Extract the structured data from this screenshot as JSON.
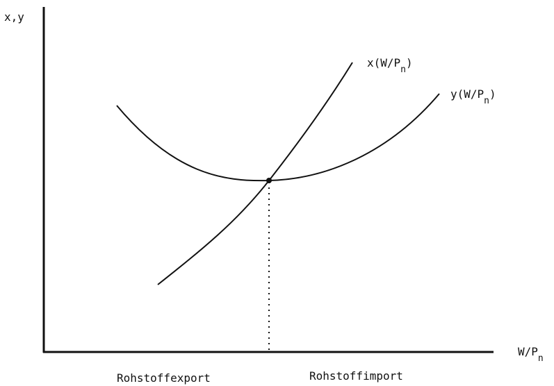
{
  "axes": {
    "y_label": "x,y",
    "x_label": {
      "main": "W/P",
      "sub": "n"
    }
  },
  "curves": [
    {
      "label": {
        "main": "x(W/P",
        "sub": "n",
        "close": ")"
      }
    },
    {
      "label": {
        "main": "y(W/P",
        "sub": "n",
        "close": ")"
      }
    }
  ],
  "regions": [
    "Rohstoffexport",
    "Rohstoffimport"
  ]
}
